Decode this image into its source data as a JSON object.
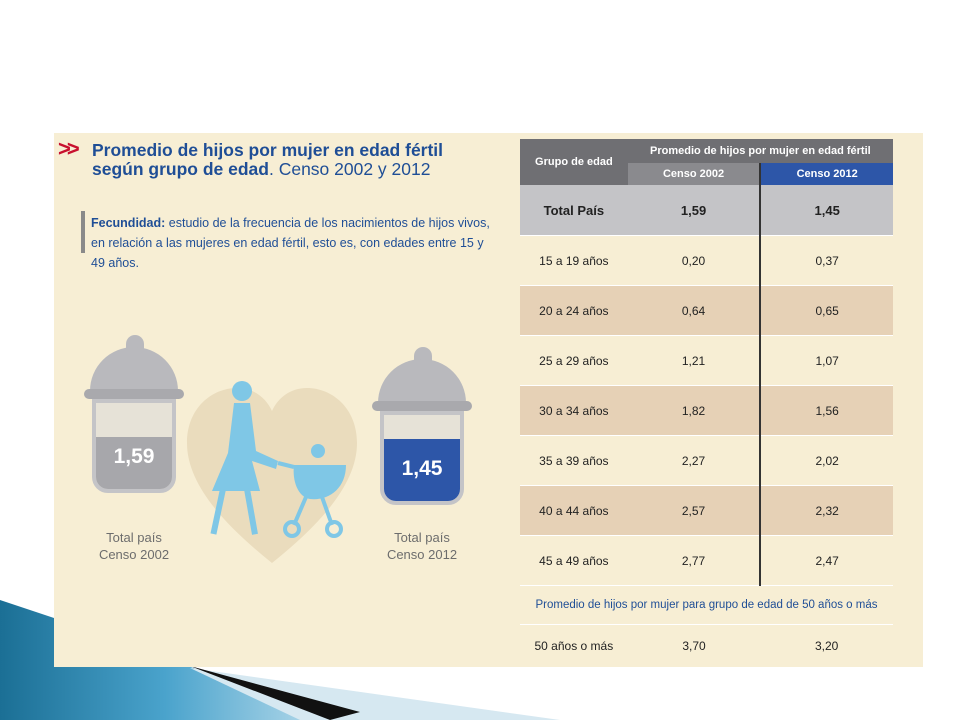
{
  "infographic": {
    "title_main": "Promedio de hijos por mujer en edad fértil según grupo de edad",
    "title_sub": ". Censo 2002 y 2012",
    "definition_term": "Fecundidad:",
    "definition_text": " estudio de la frecuencia de los nacimientos de hijos vivos, en relación a las mujeres en edad fértil, esto es, con edades entre 15 y 49 años.",
    "jar_2002": {
      "value": "1,59",
      "label_line1": "Total país",
      "label_line2": "Censo 2002",
      "color": "#a7a7ab"
    },
    "jar_2012": {
      "value": "1,45",
      "label_line1": "Total país",
      "label_line2": "Censo 2012",
      "color": "#2d56a8"
    }
  },
  "table": {
    "col_group": "Grupo de edad",
    "col_header": "Promedio de hijos por mujer en edad fértil",
    "col_2002": "Censo 2002",
    "col_2012": "Censo 2012",
    "total": {
      "label": "Total País",
      "v2002": "1,59",
      "v2012": "1,45"
    },
    "rows": [
      {
        "label": "15 a 19 años",
        "v2002": "0,20",
        "v2012": "0,37"
      },
      {
        "label": "20 a 24 años",
        "v2002": "0,64",
        "v2012": "0,65"
      },
      {
        "label": "25 a 29 años",
        "v2002": "1,21",
        "v2012": "1,07"
      },
      {
        "label": "30 a 34 años",
        "v2002": "1,82",
        "v2012": "1,56"
      },
      {
        "label": "35 a 39 años",
        "v2002": "2,27",
        "v2012": "2,02"
      },
      {
        "label": "40 a 44 años",
        "v2002": "2,57",
        "v2012": "2,32"
      },
      {
        "label": "45 a 49 años",
        "v2002": "2,77",
        "v2012": "2,47"
      }
    ],
    "note": "Promedio de hijos por mujer para grupo de edad de 50 años o más",
    "last": {
      "label": "50 años o más",
      "v2002": "3,70",
      "v2012": "3,20"
    }
  }
}
